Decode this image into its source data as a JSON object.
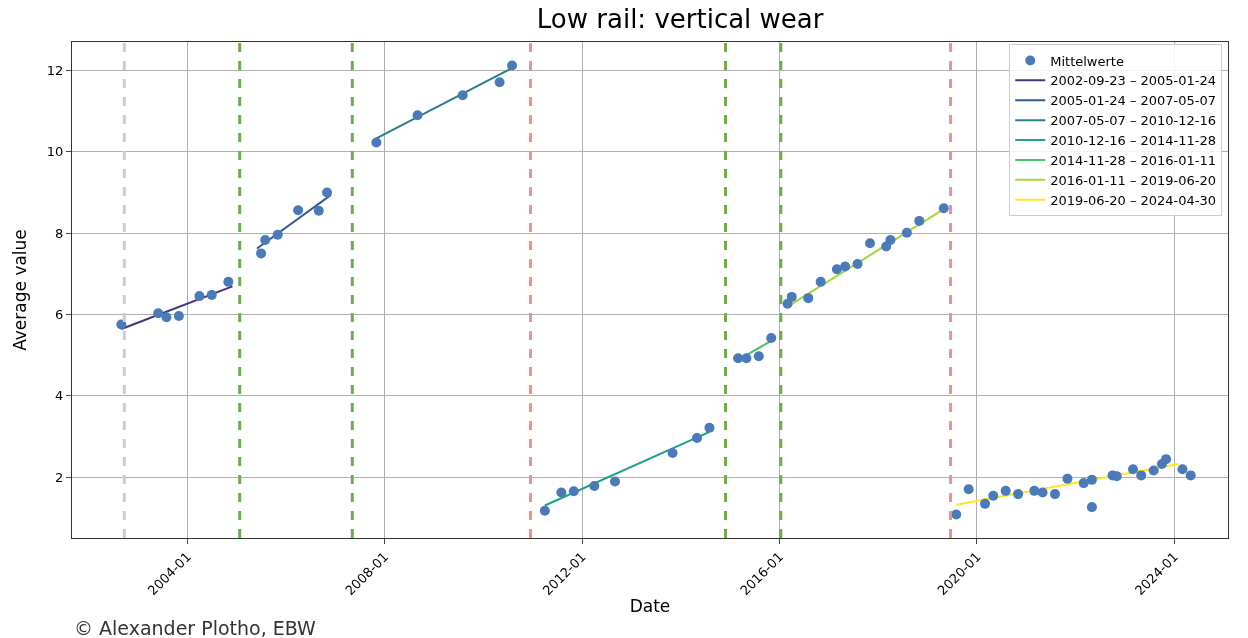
{
  "chart_data": {
    "type": "scatter",
    "title": "Low rail: vertical wear",
    "xlabel": "Date",
    "ylabel": "Average value",
    "annotations": [
      "© Alexander Plotho, EBW"
    ],
    "xlim": [
      "2001-09-01",
      "2025-02-01"
    ],
    "ylim": [
      0.5,
      12.7
    ],
    "xticks": [
      {
        "value": "2004-01-01",
        "label": "2004-01"
      },
      {
        "value": "2008-01-01",
        "label": "2008-01"
      },
      {
        "value": "2012-01-01",
        "label": "2012-01"
      },
      {
        "value": "2016-01-01",
        "label": "2016-01"
      },
      {
        "value": "2020-01-01",
        "label": "2020-01"
      },
      {
        "value": "2024-01-01",
        "label": "2024-01"
      }
    ],
    "yticks": [
      2,
      4,
      6,
      8,
      10,
      12
    ],
    "grid": true,
    "legend": "top right",
    "ref_lines": [
      {
        "axis": "x",
        "value": "2002-09-23",
        "color": "#cccccc",
        "line_style": "dashed"
      },
      {
        "axis": "x",
        "value": "2005-01-24",
        "color": "#70ad47",
        "line_style": "dashed"
      },
      {
        "axis": "x",
        "value": "2007-05-07",
        "color": "#70ad47",
        "line_style": "dashed"
      },
      {
        "axis": "x",
        "value": "2010-12-16",
        "color": "#ee9090",
        "line_style": "dashed"
      },
      {
        "axis": "x",
        "value": "2014-11-28",
        "color": "#70ad47",
        "line_style": "dashed"
      },
      {
        "axis": "x",
        "value": "2016-01-11",
        "color": "#70ad47",
        "line_style": "dashed"
      },
      {
        "axis": "x",
        "value": "2019-06-20",
        "color": "#ee9090",
        "line_style": "dashed"
      }
    ],
    "series": [
      {
        "name": "Mittelwerte",
        "marker": "circle",
        "color": "#4a7ab8",
        "x": [
          "2002-09",
          "2003-06",
          "2003-08",
          "2003-11",
          "2004-04",
          "2004-07",
          "2004-11",
          "2005-07",
          "2005-08",
          "2005-11",
          "2006-04",
          "2006-09",
          "2006-11",
          "2007-11",
          "2008-09",
          "2009-08",
          "2010-05",
          "2010-08",
          "2011-04",
          "2011-08",
          "2011-11",
          "2012-04",
          "2012-09",
          "2013-11",
          "2014-05",
          "2014-08",
          "2015-03",
          "2015-05",
          "2015-08",
          "2015-11",
          "2016-03",
          "2016-04",
          "2016-08",
          "2016-11",
          "2017-03",
          "2017-05",
          "2017-08",
          "2017-11",
          "2018-03",
          "2018-04",
          "2018-08",
          "2018-11",
          "2019-05",
          "2019-08",
          "2019-11",
          "2020-03",
          "2020-05",
          "2020-08",
          "2020-11",
          "2021-03",
          "2021-05",
          "2021-08",
          "2021-11",
          "2022-03",
          "2022-05",
          "2022-05",
          "2022-10",
          "2022-11",
          "2023-03",
          "2023-05",
          "2023-08",
          "2023-10",
          "2023-11",
          "2024-03",
          "2024-05"
        ],
        "values": [
          5.75,
          6.03,
          5.93,
          5.96,
          6.45,
          6.48,
          6.8,
          7.5,
          7.83,
          7.96,
          8.56,
          8.55,
          9.0,
          10.23,
          10.9,
          11.39,
          11.71,
          12.12,
          1.17,
          1.62,
          1.65,
          1.78,
          1.89,
          2.59,
          2.96,
          3.21,
          4.92,
          4.92,
          4.97,
          5.42,
          6.26,
          6.43,
          6.4,
          6.8,
          7.11,
          7.18,
          7.24,
          7.75,
          7.67,
          7.83,
          8.01,
          8.3,
          8.61,
          1.08,
          1.7,
          1.34,
          1.54,
          1.66,
          1.58,
          1.66,
          1.62,
          1.58,
          1.96,
          1.85,
          1.93,
          1.26,
          2.04,
          2.02,
          2.19,
          2.04,
          2.16,
          2.32,
          2.44,
          2.19,
          2.04
        ]
      },
      {
        "name": "2002-09-23 – 2005-01-24",
        "type": "line",
        "color": "#46327e",
        "x": [
          "2002-09",
          "2004-12"
        ],
        "values": [
          5.64,
          6.69
        ]
      },
      {
        "name": "2005-01-24 – 2007-05-07",
        "type": "line",
        "color": "#365c8d",
        "x": [
          "2005-06",
          "2006-12"
        ],
        "values": [
          7.62,
          8.94
        ]
      },
      {
        "name": "2007-05-07 – 2010-12-16",
        "type": "line",
        "color": "#277f8e",
        "x": [
          "2007-11",
          "2010-08"
        ],
        "values": [
          10.33,
          12.06
        ]
      },
      {
        "name": "2010-12-16 – 2014-11-28",
        "type": "line",
        "color": "#1fa187",
        "x": [
          "2011-04",
          "2014-08"
        ],
        "values": [
          1.3,
          3.11
        ]
      },
      {
        "name": "2014-11-28 – 2016-01-11",
        "type": "line",
        "color": "#4ac16d",
        "x": [
          "2015-03",
          "2015-11"
        ],
        "values": [
          4.88,
          5.35
        ]
      },
      {
        "name": "2016-01-11 – 2019-06-20",
        "type": "line",
        "color": "#a0da39",
        "x": [
          "2016-03",
          "2019-05"
        ],
        "values": [
          6.19,
          8.59
        ]
      },
      {
        "name": "2019-06-20 – 2024-04-30",
        "type": "line",
        "color": "#fde725",
        "x": [
          "2019-08",
          "2024-02"
        ],
        "values": [
          1.32,
          2.32
        ]
      }
    ]
  }
}
